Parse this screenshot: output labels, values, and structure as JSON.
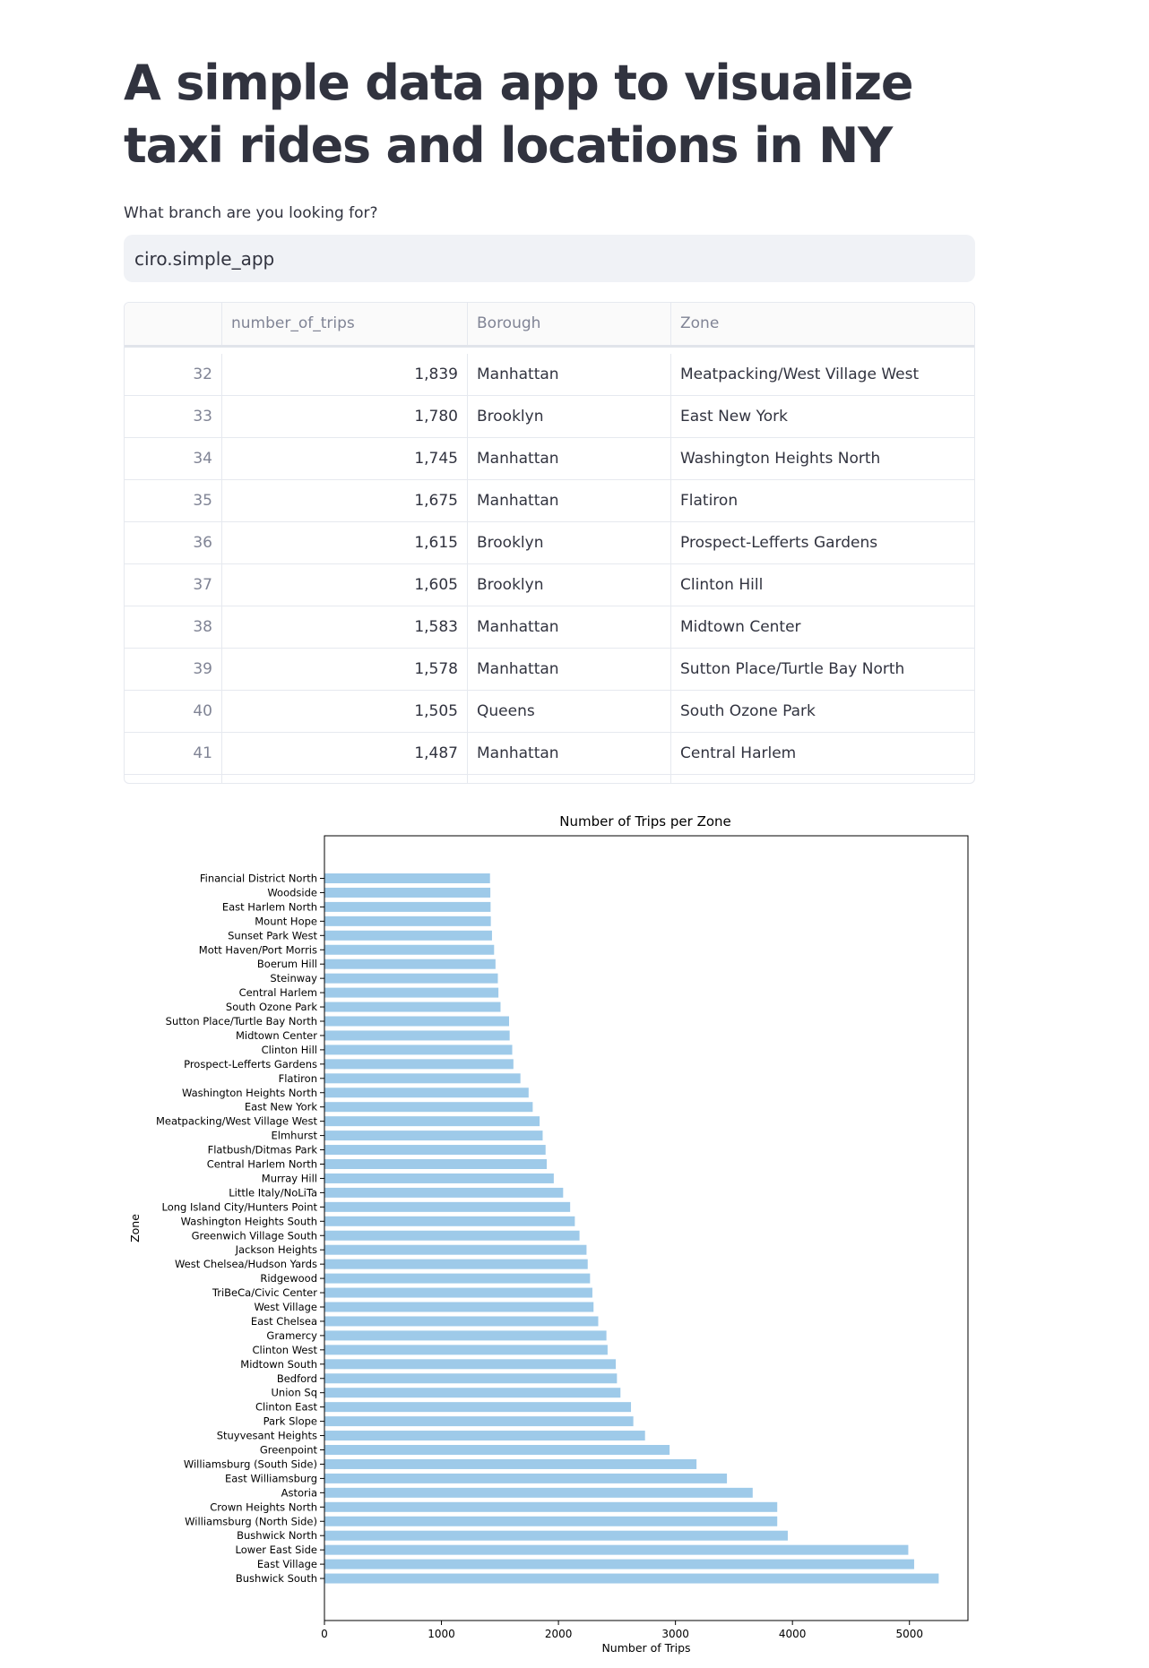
{
  "header": {
    "title": "A simple data app to visualize taxi rides and locations in NY"
  },
  "branch_input": {
    "label": "What branch are you looking for?",
    "value": "ciro.simple_app"
  },
  "table": {
    "columns": [
      "",
      "number_of_trips",
      "Borough",
      "Zone"
    ],
    "rows": [
      {
        "index": "32",
        "number_of_trips": "1,839",
        "borough": "Manhattan",
        "zone": "Meatpacking/West Village West"
      },
      {
        "index": "33",
        "number_of_trips": "1,780",
        "borough": "Brooklyn",
        "zone": "East New York"
      },
      {
        "index": "34",
        "number_of_trips": "1,745",
        "borough": "Manhattan",
        "zone": "Washington Heights North"
      },
      {
        "index": "35",
        "number_of_trips": "1,675",
        "borough": "Manhattan",
        "zone": "Flatiron"
      },
      {
        "index": "36",
        "number_of_trips": "1,615",
        "borough": "Brooklyn",
        "zone": "Prospect-Lefferts Gardens"
      },
      {
        "index": "37",
        "number_of_trips": "1,605",
        "borough": "Brooklyn",
        "zone": "Clinton Hill"
      },
      {
        "index": "38",
        "number_of_trips": "1,583",
        "borough": "Manhattan",
        "zone": "Midtown Center"
      },
      {
        "index": "39",
        "number_of_trips": "1,578",
        "borough": "Manhattan",
        "zone": "Sutton Place/Turtle Bay North"
      },
      {
        "index": "40",
        "number_of_trips": "1,505",
        "borough": "Queens",
        "zone": "South Ozone Park"
      },
      {
        "index": "41",
        "number_of_trips": "1,487",
        "borough": "Manhattan",
        "zone": "Central Harlem"
      }
    ]
  },
  "colors": {
    "bar": "#9ecae9",
    "accent": "#31333f"
  },
  "chart_data": {
    "type": "bar",
    "orientation": "horizontal",
    "title": "Number of Trips per Zone",
    "xlabel": "Number of Trips",
    "ylabel": "Zone",
    "xlim": [
      0,
      5500
    ],
    "xticks": [
      0,
      1000,
      2000,
      3000,
      4000,
      5000
    ],
    "categories": [
      "Financial District North",
      "Woodside",
      "East Harlem North",
      "Mount Hope",
      "Sunset Park West",
      "Mott Haven/Port Morris",
      "Boerum Hill",
      "Steinway",
      "Central Harlem",
      "South Ozone Park",
      "Sutton Place/Turtle Bay North",
      "Midtown Center",
      "Clinton Hill",
      "Prospect-Lefferts Gardens",
      "Flatiron",
      "Washington Heights North",
      "East New York",
      "Meatpacking/West Village West",
      "Elmhurst",
      "Flatbush/Ditmas Park",
      "Central Harlem North",
      "Murray Hill",
      "Little Italy/NoLiTa",
      "Long Island City/Hunters Point",
      "Washington Heights South",
      "Greenwich Village South",
      "Jackson Heights",
      "West Chelsea/Hudson Yards",
      "Ridgewood",
      "TriBeCa/Civic Center",
      "West Village",
      "East Chelsea",
      "Gramercy",
      "Clinton West",
      "Midtown South",
      "Bedford",
      "Union Sq",
      "Clinton East",
      "Park Slope",
      "Stuyvesant Heights",
      "Greenpoint",
      "Williamsburg (South Side)",
      "East Williamsburg",
      "Astoria",
      "Crown Heights North",
      "Williamsburg (North Side)",
      "Bushwick North",
      "Lower East Side",
      "East Village",
      "Bushwick South"
    ],
    "values": [
      1415,
      1418,
      1420,
      1422,
      1432,
      1450,
      1462,
      1482,
      1487,
      1505,
      1578,
      1583,
      1605,
      1615,
      1675,
      1745,
      1780,
      1839,
      1865,
      1890,
      1900,
      1960,
      2040,
      2100,
      2140,
      2180,
      2240,
      2250,
      2270,
      2290,
      2300,
      2340,
      2410,
      2420,
      2490,
      2500,
      2530,
      2620,
      2640,
      2740,
      2950,
      3180,
      3440,
      3660,
      3870,
      3870,
      3960,
      4990,
      5040,
      5250
    ]
  }
}
